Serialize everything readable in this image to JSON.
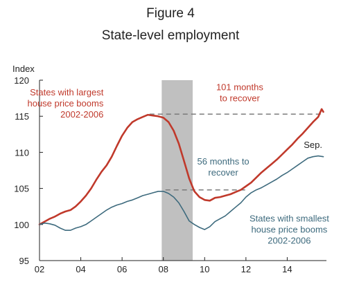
{
  "figure": {
    "label": "Figure 4"
  },
  "chart_data": {
    "type": "line",
    "title": "State-level employment",
    "ylabel": "Index",
    "xlabel": "",
    "ylim": [
      95,
      120
    ],
    "xlim": [
      2002,
      2015.9
    ],
    "yticks": [
      95,
      100,
      105,
      110,
      115,
      120
    ],
    "xticks": [
      {
        "value": 2002,
        "label": "02"
      },
      {
        "value": 2004,
        "label": "04"
      },
      {
        "value": 2006,
        "label": "06"
      },
      {
        "value": 2008,
        "label": "08"
      },
      {
        "value": 2010,
        "label": "10"
      },
      {
        "value": 2012,
        "label": "12"
      },
      {
        "value": 2014,
        "label": "14"
      }
    ],
    "grid": false,
    "recession_band": {
      "start": 2007.92,
      "end": 2009.42,
      "color": "#c0c0c0"
    },
    "series": [
      {
        "name": "States with largest house price booms 2002-2006",
        "color": "#c0392b",
        "x": [
          2002.0,
          2002.25,
          2002.5,
          2002.75,
          2003.0,
          2003.25,
          2003.5,
          2003.75,
          2004.0,
          2004.25,
          2004.5,
          2004.75,
          2005.0,
          2005.25,
          2005.5,
          2005.75,
          2006.0,
          2006.25,
          2006.5,
          2006.75,
          2007.0,
          2007.25,
          2007.5,
          2007.75,
          2008.0,
          2008.25,
          2008.5,
          2008.75,
          2009.0,
          2009.25,
          2009.5,
          2009.75,
          2010.0,
          2010.25,
          2010.5,
          2010.75,
          2011.0,
          2011.25,
          2011.5,
          2011.75,
          2012.0,
          2012.25,
          2012.5,
          2012.75,
          2013.0,
          2013.25,
          2013.5,
          2013.75,
          2014.0,
          2014.25,
          2014.5,
          2014.75,
          2015.0,
          2015.25,
          2015.5,
          2015.67,
          2015.75
        ],
        "y": [
          100.0,
          100.4,
          100.8,
          101.1,
          101.5,
          101.8,
          102.0,
          102.5,
          103.2,
          104.0,
          105.0,
          106.2,
          107.3,
          108.2,
          109.4,
          110.9,
          112.3,
          113.4,
          114.2,
          114.6,
          114.9,
          115.2,
          115.1,
          115.0,
          114.8,
          114.2,
          113.0,
          111.2,
          108.8,
          106.4,
          104.6,
          103.8,
          103.4,
          103.3,
          103.7,
          103.8,
          104.0,
          104.2,
          104.5,
          104.8,
          105.3,
          105.8,
          106.5,
          107.2,
          107.8,
          108.4,
          109.0,
          109.7,
          110.4,
          111.1,
          111.9,
          112.6,
          113.4,
          114.2,
          114.9,
          116.0,
          115.6
        ]
      },
      {
        "name": "States with smallest house price booms 2002-2006",
        "color": "#3d6a7d",
        "x": [
          2002.0,
          2002.25,
          2002.5,
          2002.75,
          2003.0,
          2003.25,
          2003.5,
          2003.75,
          2004.0,
          2004.25,
          2004.5,
          2004.75,
          2005.0,
          2005.25,
          2005.5,
          2005.75,
          2006.0,
          2006.25,
          2006.5,
          2006.75,
          2007.0,
          2007.25,
          2007.5,
          2007.75,
          2008.0,
          2008.25,
          2008.5,
          2008.75,
          2009.0,
          2009.25,
          2009.5,
          2009.75,
          2010.0,
          2010.25,
          2010.5,
          2010.75,
          2011.0,
          2011.25,
          2011.5,
          2011.75,
          2012.0,
          2012.25,
          2012.5,
          2012.75,
          2013.0,
          2013.25,
          2013.5,
          2013.75,
          2014.0,
          2014.25,
          2014.5,
          2014.75,
          2015.0,
          2015.25,
          2015.5,
          2015.75
        ],
        "y": [
          100.0,
          100.2,
          100.1,
          99.9,
          99.5,
          99.2,
          99.2,
          99.5,
          99.7,
          100.0,
          100.5,
          101.0,
          101.5,
          102.0,
          102.4,
          102.7,
          102.9,
          103.2,
          103.4,
          103.7,
          104.0,
          104.2,
          104.4,
          104.6,
          104.6,
          104.3,
          103.8,
          103.0,
          101.8,
          100.5,
          100.0,
          99.6,
          99.3,
          99.7,
          100.4,
          100.8,
          101.2,
          101.8,
          102.4,
          103.0,
          103.8,
          104.4,
          104.8,
          105.1,
          105.5,
          105.9,
          106.3,
          106.8,
          107.2,
          107.7,
          108.2,
          108.7,
          109.2,
          109.4,
          109.5,
          109.4
        ]
      }
    ],
    "reference_lines": [
      {
        "x_start": 2007.33,
        "x_end": 2015.65,
        "y": 115.3,
        "color": "#7a7a7a"
      },
      {
        "x_start": 2008.1,
        "x_end": 2012.0,
        "y": 104.8,
        "color": "#7a7a7a"
      }
    ],
    "annotations": [
      {
        "series_index": 0,
        "lines": [
          "States with largest",
          "house price booms",
          "2002-2006"
        ],
        "x": 2005.1,
        "y": 117.9,
        "anchor": "end"
      },
      {
        "series_index": 0,
        "lines": [
          "101 months",
          "to recover"
        ],
        "x": 2011.7,
        "y": 118.6,
        "anchor": "middle"
      },
      {
        "series_index": 1,
        "lines": [
          "56 months to",
          "recover"
        ],
        "x": 2010.9,
        "y": 108.3,
        "anchor": "middle"
      },
      {
        "series_index": 1,
        "lines": [
          "States with smallest",
          "house price booms",
          "2002-2006"
        ],
        "x": 2014.1,
        "y": 100.4,
        "anchor": "middle"
      },
      {
        "series_index": -1,
        "lines": [
          "Sep."
        ],
        "x": 2015.25,
        "y": 110.6,
        "anchor": "middle"
      }
    ]
  }
}
